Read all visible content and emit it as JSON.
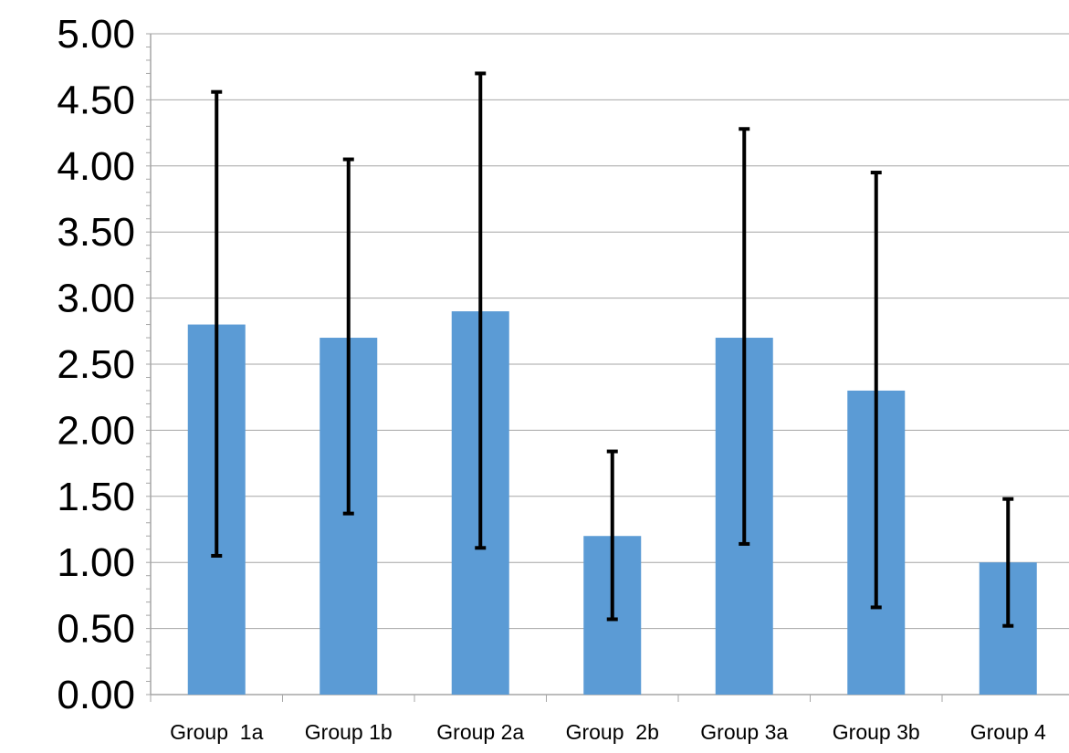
{
  "chart_data": {
    "type": "bar",
    "title": "",
    "xlabel": "",
    "ylabel": "",
    "ylim": [
      0,
      5
    ],
    "y_tick_step": 0.5,
    "y_tick_labels": [
      "0.00",
      "0.50",
      "1.00",
      "1.50",
      "2.00",
      "2.50",
      "3.00",
      "3.50",
      "4.00",
      "4.50",
      "5.00"
    ],
    "grid": true,
    "legend": "none",
    "categories": [
      "Group  1a",
      "Group 1b",
      "Group 2a",
      "Group  2b",
      "Group 3a",
      "Group 3b",
      "Group 4"
    ],
    "values": [
      2.8,
      2.7,
      2.9,
      1.2,
      2.7,
      2.3,
      1.0
    ],
    "error_bars": [
      {
        "low": 1.05,
        "high": 4.56
      },
      {
        "low": 1.37,
        "high": 4.05
      },
      {
        "low": 1.11,
        "high": 4.7
      },
      {
        "low": 0.57,
        "high": 1.84
      },
      {
        "low": 1.14,
        "high": 4.28
      },
      {
        "low": 0.66,
        "high": 3.95
      },
      {
        "low": 0.52,
        "high": 1.48
      }
    ],
    "colors": {
      "bar": "#5b9bd5",
      "error_bar": "#000000",
      "grid": "#a6a6a6",
      "axis": "#a6a6a6",
      "text": "#000000"
    }
  }
}
